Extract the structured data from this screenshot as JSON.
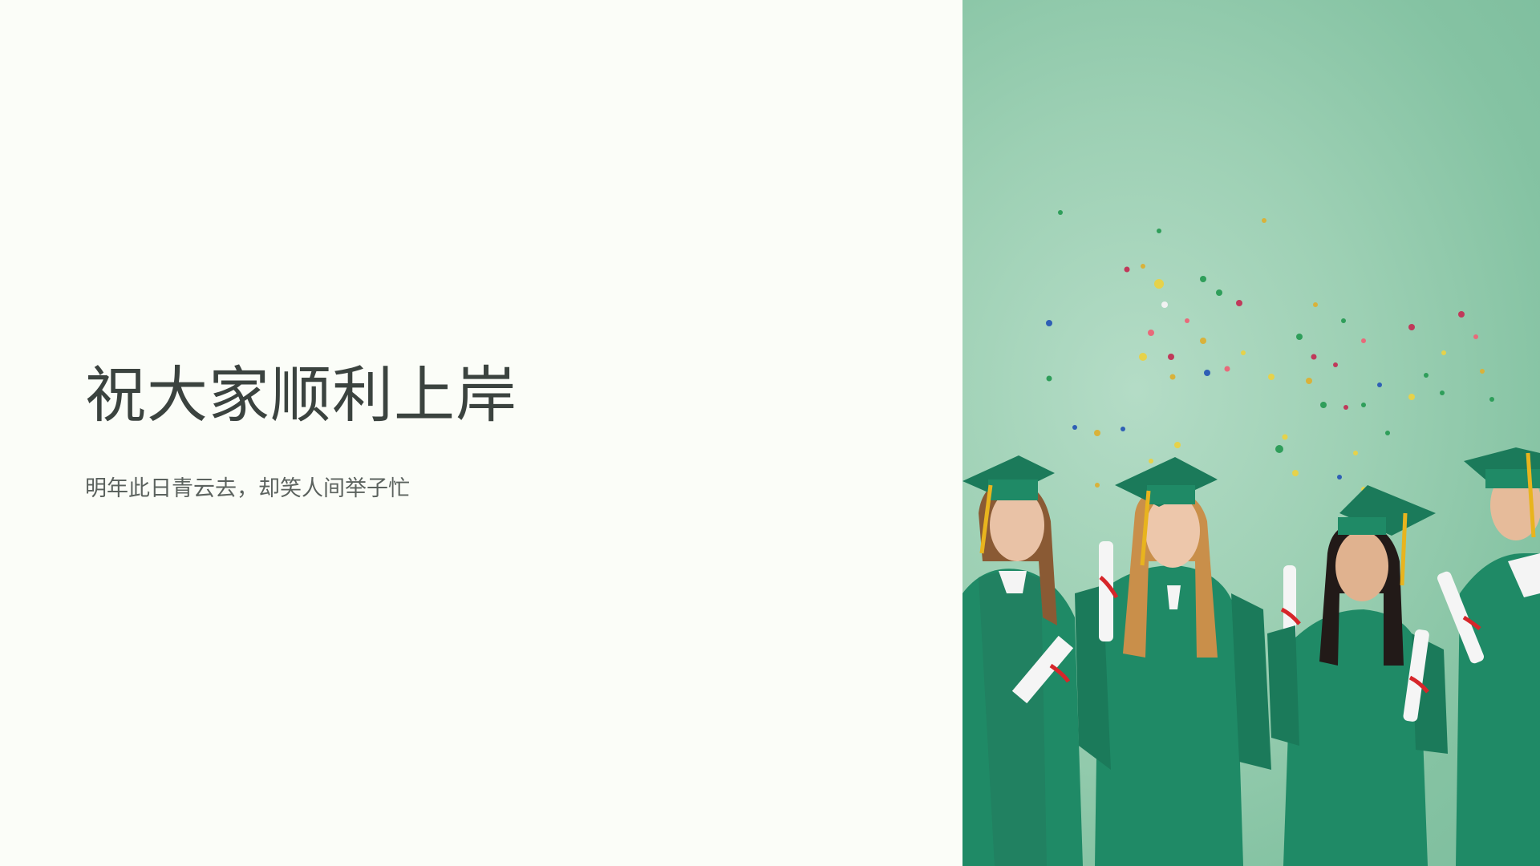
{
  "slide": {
    "title": "祝大家顺利上岸",
    "subtitle": "明年此日青云去，却笑人间举子忙"
  },
  "photo": {
    "subject": "graduates-in-green-gowns-with-confetti"
  },
  "colors": {
    "background": "#fbfdf8",
    "title": "#3b433f",
    "subtitle": "#5b625e",
    "gown_green": "#1f8a66",
    "photo_bg": "#9dd0b4",
    "tassel": "#e8b41e",
    "ribbon": "#d6262a"
  }
}
